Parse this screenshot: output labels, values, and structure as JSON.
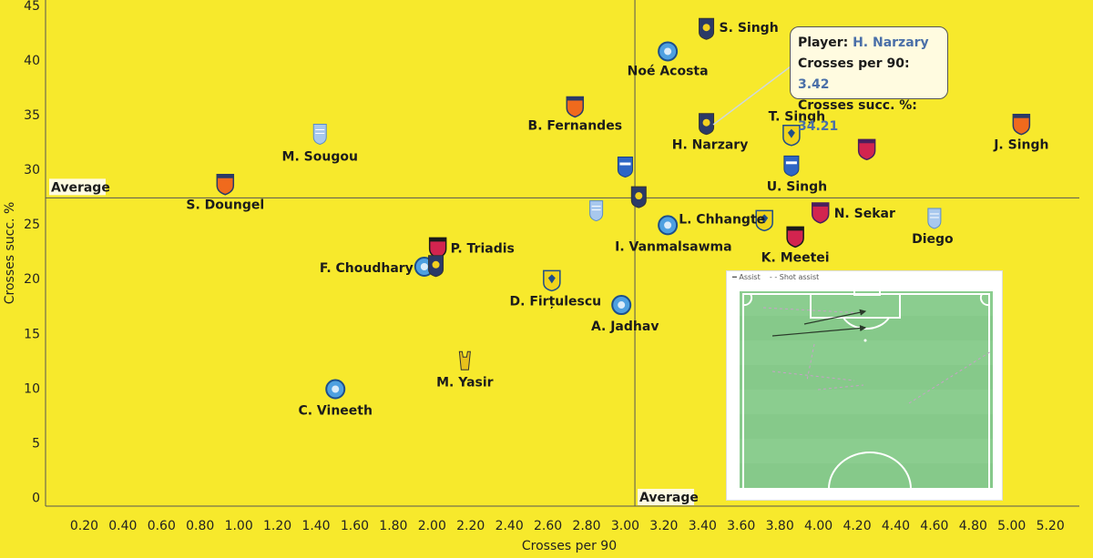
{
  "tooltip": {
    "player_label": "Player:",
    "player_value": "H. Narzary",
    "crosses_label": "Crosses per 90:",
    "crosses_value": "3.42",
    "succ_label": "Crosses succ. %:",
    "succ_value": "34.21"
  },
  "pitch_legend": {
    "assist": "Assist",
    "shot_assist": "Shot assist"
  },
  "chart_data": {
    "type": "scatter",
    "xlabel": "Crosses per 90",
    "ylabel": "Crosses succ. %",
    "xlim": [
      0.0,
      5.35
    ],
    "ylim": [
      -0.8,
      45.5
    ],
    "xticks": [
      "0.20",
      "0.40",
      "0.60",
      "0.80",
      "1.00",
      "1.20",
      "1.40",
      "1.60",
      "1.80",
      "2.00",
      "2.20",
      "2.40",
      "2.60",
      "2.80",
      "3.00",
      "3.20",
      "3.40",
      "3.60",
      "3.80",
      "4.00",
      "4.20",
      "4.40",
      "4.60",
      "4.80",
      "5.00",
      "5.20"
    ],
    "yticks": [
      "0",
      "5",
      "10",
      "15",
      "20",
      "25",
      "30",
      "35",
      "40",
      "45"
    ],
    "average_x": 3.05,
    "average_y": 27.4,
    "average_x_label": "Average",
    "average_y_label": "Average",
    "points": [
      {
        "label": "S. Singh",
        "x": 3.42,
        "y": 42.9,
        "badge": "kerala",
        "badge_color": "#f3d11f",
        "badge_dark": "#2b3a67"
      },
      {
        "label": "Noé Acosta",
        "x": 3.22,
        "y": 40.8,
        "badge": "jamshedpur",
        "badge_color": "#4ea0e0",
        "badge_dark": "#1c4f8c"
      },
      {
        "label": "B. Fernandes",
        "x": 2.74,
        "y": 35.8,
        "badge": "goa",
        "badge_color": "#f06a1d",
        "badge_dark": "#2b3a67"
      },
      {
        "label": "H. Narzary",
        "x": 3.42,
        "y": 34.2,
        "badge": "kerala",
        "badge_color": "#f3d11f",
        "badge_dark": "#2b3a67"
      },
      {
        "label": "T. Singh",
        "x": 3.86,
        "y": 33.2,
        "badge": "chennaiyin",
        "badge_color": "#f0d41c",
        "badge_dark": "#1f4d8a"
      },
      {
        "label": "J. Singh",
        "x": 5.05,
        "y": 34.2,
        "badge": "goa",
        "badge_color": "#f06a1d",
        "badge_dark": "#2b3a67"
      },
      {
        "label": "M. Sougou",
        "x": 1.42,
        "y": 33.3,
        "badge": "mumbai",
        "badge_color": "#a8c8ee",
        "badge_dark": "#5a8cc8"
      },
      {
        "label": "",
        "x": 4.25,
        "y": 31.9,
        "badge": "odisha",
        "badge_color": "#d2244f",
        "badge_dark": "#4b1f5c"
      },
      {
        "label": "",
        "x": 3.0,
        "y": 30.3,
        "badge": "bengaluru",
        "badge_color": "#2e66c4",
        "badge_dark": "#ffffff"
      },
      {
        "label": "U. Singh",
        "x": 3.86,
        "y": 30.4,
        "badge": "bengaluru",
        "badge_color": "#2e66c4",
        "badge_dark": "#ffffff"
      },
      {
        "label": "S. Doungel",
        "x": 0.93,
        "y": 28.7,
        "badge": "goa",
        "badge_color": "#f06a1d",
        "badge_dark": "#2b3a67"
      },
      {
        "label": "",
        "x": 3.07,
        "y": 27.5,
        "badge": "kerala",
        "badge_color": "#f3d11f",
        "badge_dark": "#2b3a67"
      },
      {
        "label": "",
        "x": 2.85,
        "y": 26.3,
        "badge": "mumbai",
        "badge_color": "#a8c8ee",
        "badge_dark": "#5a8cc8"
      },
      {
        "label": "N. Sekar",
        "x": 4.01,
        "y": 26.1,
        "badge": "odisha",
        "badge_color": "#d2244f",
        "badge_dark": "#4b1f5c"
      },
      {
        "label": "Diego",
        "x": 4.6,
        "y": 25.6,
        "badge": "mumbai",
        "badge_color": "#a8c8ee",
        "badge_dark": "#5a8cc8"
      },
      {
        "label": "L. Chhangte",
        "x": 3.72,
        "y": 25.4,
        "badge": "chennaiyin",
        "badge_color": "#f0d41c",
        "badge_dark": "#1f4d8a"
      },
      {
        "label": "I. Vanmalsawma",
        "x": 3.22,
        "y": 24.9,
        "badge": "jamshedpur",
        "badge_color": "#4ea0e0",
        "badge_dark": "#1c4f8c"
      },
      {
        "label": "K. Meetei",
        "x": 3.88,
        "y": 23.9,
        "badge": "northeast",
        "badge_color": "#d2244f",
        "badge_dark": "#1a1a1a"
      },
      {
        "label": "P. Triadis",
        "x": 2.03,
        "y": 22.9,
        "badge": "northeast",
        "badge_color": "#d2244f",
        "badge_dark": "#1a1a1a"
      },
      {
        "label": "F. Choudhary",
        "x": 1.96,
        "y": 21.1,
        "badge": "jamshedpur",
        "badge_color": "#4ea0e0",
        "badge_dark": "#1c4f8c"
      },
      {
        "label": "",
        "x": 2.02,
        "y": 21.2,
        "badge": "kerala",
        "badge_color": "#f3d11f",
        "badge_dark": "#2b3a67"
      },
      {
        "label": "D. Firțulescu",
        "x": 2.62,
        "y": 19.9,
        "badge": "chennaiyin",
        "badge_color": "#f0d41c",
        "badge_dark": "#1f4d8a"
      },
      {
        "label": "A. Jadhav",
        "x": 2.98,
        "y": 17.6,
        "badge": "jamshedpur",
        "badge_color": "#4ea0e0",
        "badge_dark": "#1c4f8c"
      },
      {
        "label": "M. Yasir",
        "x": 2.17,
        "y": 12.5,
        "badge": "hyderabad",
        "badge_color": "#e8c21c",
        "badge_dark": "#333333"
      },
      {
        "label": "C. Vineeth",
        "x": 1.5,
        "y": 9.9,
        "badge": "jamshedpur",
        "badge_color": "#4ea0e0",
        "badge_dark": "#1c4f8c"
      }
    ]
  }
}
